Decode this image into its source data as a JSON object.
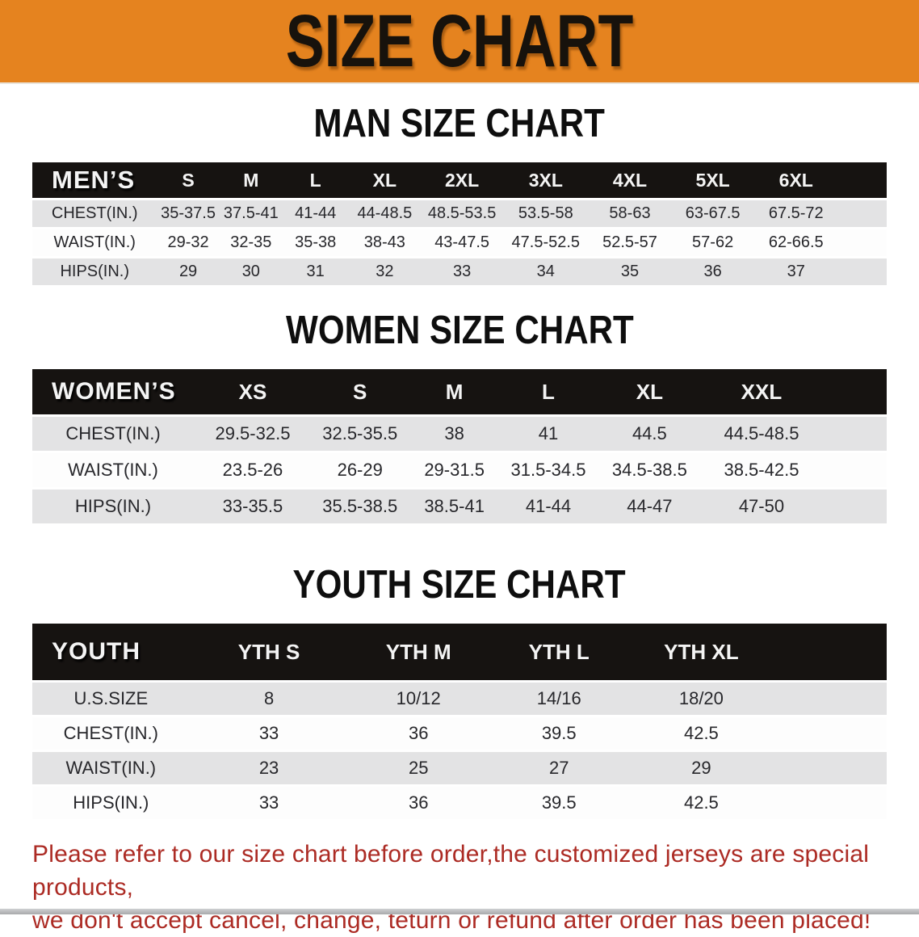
{
  "banner": {
    "title": "SIZE CHART",
    "bg_color": "#E5831F"
  },
  "sections": [
    {
      "heading": "MAN SIZE CHART",
      "table": {
        "header_label": "MEN’S",
        "columns": [
          "S",
          "M",
          "L",
          "XL",
          "2XL",
          "3XL",
          "4XL",
          "5XL",
          "6XL"
        ],
        "rows": [
          {
            "label": "CHEST(IN.)",
            "values": [
              "35-37.5",
              "37.5-41",
              "41-44",
              "44-48.5",
              "48.5-53.5",
              "53.5-58",
              "58-63",
              "63-67.5",
              "67.5-72"
            ]
          },
          {
            "label": "WAIST(IN.)",
            "values": [
              "29-32",
              "32-35",
              "35-38",
              "38-43",
              "43-47.5",
              "47.5-52.5",
              "52.5-57",
              "57-62",
              "62-66.5"
            ]
          },
          {
            "label": "HIPS(IN.)",
            "values": [
              "29",
              "30",
              "31",
              "32",
              "33",
              "34",
              "35",
              "36",
              "37"
            ]
          }
        ]
      }
    },
    {
      "heading": "WOMEN SIZE CHART",
      "table": {
        "header_label": "WOMEN’S",
        "columns": [
          "XS",
          "S",
          "M",
          "L",
          "XL",
          "XXL"
        ],
        "rows": [
          {
            "label": "CHEST(IN.)",
            "values": [
              "29.5-32.5",
              "32.5-35.5",
              "38",
              "41",
              "44.5",
              "44.5-48.5"
            ]
          },
          {
            "label": "WAIST(IN.)",
            "values": [
              "23.5-26",
              "26-29",
              "29-31.5",
              "31.5-34.5",
              "34.5-38.5",
              "38.5-42.5"
            ]
          },
          {
            "label": "HIPS(IN.)",
            "values": [
              "33-35.5",
              "35.5-38.5",
              "38.5-41",
              "41-44",
              "44-47",
              "47-50"
            ]
          }
        ]
      }
    },
    {
      "heading": "YOUTH SIZE CHART",
      "table": {
        "header_label": "YOUTH",
        "columns": [
          "YTH S",
          "YTH M",
          "YTH L",
          "YTH XL"
        ],
        "rows": [
          {
            "label": "U.S.SIZE",
            "values": [
              "8",
              "10/12",
              "14/16",
              "18/20"
            ]
          },
          {
            "label": "CHEST(IN.)",
            "values": [
              "33",
              "36",
              "39.5",
              "42.5"
            ]
          },
          {
            "label": "WAIST(IN.)",
            "values": [
              "23",
              "25",
              "27",
              "29"
            ]
          },
          {
            "label": "HIPS(IN.)",
            "values": [
              "33",
              "36",
              "39.5",
              "42.5"
            ]
          }
        ]
      }
    }
  ],
  "footer": {
    "line1": "Please refer to our size chart before order,the customized jerseys are special products,",
    "line2": "we don't accept cancel, change, teturn or refund after order has been placed!",
    "text_color": "#AC2B24"
  }
}
